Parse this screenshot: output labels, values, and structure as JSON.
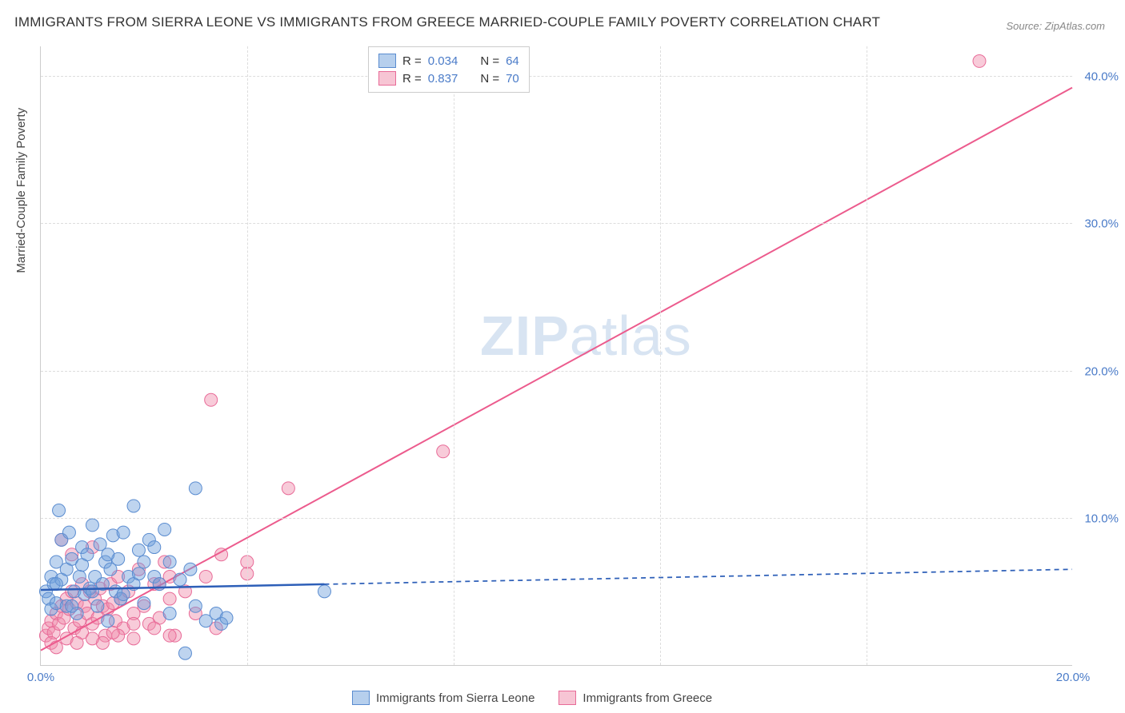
{
  "title": "IMMIGRANTS FROM SIERRA LEONE VS IMMIGRANTS FROM GREECE MARRIED-COUPLE FAMILY POVERTY CORRELATION CHART",
  "source": "Source: ZipAtlas.com",
  "y_axis_label": "Married-Couple Family Poverty",
  "watermark_bold": "ZIP",
  "watermark_rest": "atlas",
  "chart": {
    "type": "scatter",
    "background_color": "#ffffff",
    "grid_color": "#dddddd",
    "axis_color": "#cccccc",
    "tick_color": "#4a7bc8",
    "xlim": [
      0,
      20
    ],
    "ylim": [
      0,
      42
    ],
    "yticks": [
      {
        "value": 10,
        "label": "10.0%"
      },
      {
        "value": 20,
        "label": "20.0%"
      },
      {
        "value": 30,
        "label": "30.0%"
      },
      {
        "value": 40,
        "label": "40.0%"
      }
    ],
    "xticks": [
      {
        "value": 0,
        "label": "0.0%"
      },
      {
        "value": 20,
        "label": "20.0%"
      }
    ],
    "xgrid_values": [
      4,
      8,
      12,
      16
    ]
  },
  "legend_top": {
    "rows": [
      {
        "swatch": "blue",
        "R_label": "R =",
        "R_value": "0.034",
        "N_label": "N =",
        "N_value": "64"
      },
      {
        "swatch": "pink",
        "R_label": "R =",
        "R_value": "0.837",
        "N_label": "N =",
        "N_value": "70"
      }
    ]
  },
  "legend_bottom": {
    "items": [
      {
        "swatch": "blue",
        "label": "Immigrants from Sierra Leone"
      },
      {
        "swatch": "pink",
        "label": "Immigrants from Greece"
      }
    ]
  },
  "series": {
    "blue": {
      "marker_fill": "rgba(110,160,220,0.45)",
      "marker_stroke": "#5a8cd0",
      "marker_radius": 8,
      "trend_color": "#2d5fb8",
      "trend_width": 2.5,
      "trend_solid_xmax": 5.5,
      "trend": {
        "x0": 0,
        "y0": 5.1,
        "x1": 20,
        "y1": 6.5
      },
      "points": [
        [
          0.1,
          5.0
        ],
        [
          0.15,
          4.5
        ],
        [
          0.2,
          6.0
        ],
        [
          0.2,
          3.8
        ],
        [
          0.25,
          5.5
        ],
        [
          0.3,
          7.0
        ],
        [
          0.3,
          4.2
        ],
        [
          0.35,
          10.5
        ],
        [
          0.4,
          5.8
        ],
        [
          0.4,
          8.5
        ],
        [
          0.5,
          6.5
        ],
        [
          0.5,
          4.0
        ],
        [
          0.55,
          9.0
        ],
        [
          0.6,
          7.2
        ],
        [
          0.65,
          5.0
        ],
        [
          0.7,
          3.5
        ],
        [
          0.75,
          6.0
        ],
        [
          0.8,
          8.0
        ],
        [
          0.85,
          4.8
        ],
        [
          0.9,
          7.5
        ],
        [
          0.95,
          5.2
        ],
        [
          1.0,
          9.5
        ],
        [
          1.05,
          6.0
        ],
        [
          1.1,
          4.0
        ],
        [
          1.15,
          8.2
        ],
        [
          1.2,
          5.5
        ],
        [
          1.25,
          7.0
        ],
        [
          1.3,
          3.0
        ],
        [
          1.35,
          6.5
        ],
        [
          1.4,
          8.8
        ],
        [
          1.45,
          5.0
        ],
        [
          1.5,
          7.2
        ],
        [
          1.55,
          4.5
        ],
        [
          1.6,
          9.0
        ],
        [
          1.7,
          6.0
        ],
        [
          1.8,
          5.5
        ],
        [
          1.9,
          7.8
        ],
        [
          2.0,
          4.2
        ],
        [
          2.1,
          8.5
        ],
        [
          2.2,
          6.0
        ],
        [
          2.3,
          5.5
        ],
        [
          2.4,
          9.2
        ],
        [
          2.5,
          3.5
        ],
        [
          2.5,
          7.0
        ],
        [
          2.7,
          5.8
        ],
        [
          2.8,
          0.8
        ],
        [
          2.9,
          6.5
        ],
        [
          3.0,
          4.0
        ],
        [
          3.2,
          3.0
        ],
        [
          3.4,
          3.5
        ],
        [
          3.5,
          2.8
        ],
        [
          3.6,
          3.2
        ],
        [
          1.8,
          10.8
        ],
        [
          3.0,
          12.0
        ],
        [
          0.3,
          5.5
        ],
        [
          0.6,
          4.0
        ],
        [
          0.8,
          6.8
        ],
        [
          1.0,
          5.0
        ],
        [
          1.3,
          7.5
        ],
        [
          1.6,
          4.8
        ],
        [
          1.9,
          6.2
        ],
        [
          2.2,
          8.0
        ],
        [
          5.5,
          5.0
        ],
        [
          2.0,
          7.0
        ]
      ]
    },
    "pink": {
      "marker_fill": "rgba(240,140,170,0.45)",
      "marker_stroke": "#e86b98",
      "marker_radius": 8,
      "trend_color": "#ec5b8d",
      "trend_width": 2,
      "trend_solid_xmax": 20,
      "trend": {
        "x0": 0,
        "y0": 1.0,
        "x1": 20,
        "y1": 39.2
      },
      "points": [
        [
          0.1,
          2.0
        ],
        [
          0.15,
          2.5
        ],
        [
          0.2,
          3.0
        ],
        [
          0.25,
          2.2
        ],
        [
          0.3,
          3.5
        ],
        [
          0.35,
          2.8
        ],
        [
          0.4,
          4.0
        ],
        [
          0.45,
          3.2
        ],
        [
          0.5,
          4.5
        ],
        [
          0.55,
          3.8
        ],
        [
          0.6,
          5.0
        ],
        [
          0.65,
          2.5
        ],
        [
          0.7,
          4.2
        ],
        [
          0.75,
          3.0
        ],
        [
          0.8,
          5.5
        ],
        [
          0.85,
          4.0
        ],
        [
          0.9,
          3.5
        ],
        [
          0.95,
          5.0
        ],
        [
          1.0,
          2.8
        ],
        [
          1.05,
          4.5
        ],
        [
          1.1,
          3.2
        ],
        [
          1.15,
          5.2
        ],
        [
          1.2,
          4.0
        ],
        [
          1.25,
          2.0
        ],
        [
          1.3,
          3.8
        ],
        [
          1.35,
          5.5
        ],
        [
          1.4,
          4.2
        ],
        [
          1.45,
          3.0
        ],
        [
          1.5,
          6.0
        ],
        [
          1.55,
          4.5
        ],
        [
          1.6,
          2.5
        ],
        [
          1.7,
          5.0
        ],
        [
          1.8,
          3.5
        ],
        [
          1.9,
          6.5
        ],
        [
          2.0,
          4.0
        ],
        [
          2.1,
          2.8
        ],
        [
          2.2,
          5.5
        ],
        [
          2.3,
          3.2
        ],
        [
          2.4,
          7.0
        ],
        [
          2.5,
          4.5
        ],
        [
          2.6,
          2.0
        ],
        [
          2.8,
          5.0
        ],
        [
          3.0,
          3.5
        ],
        [
          3.2,
          6.0
        ],
        [
          3.4,
          2.5
        ],
        [
          0.2,
          1.5
        ],
        [
          0.5,
          1.8
        ],
        [
          0.8,
          2.2
        ],
        [
          1.2,
          1.5
        ],
        [
          1.5,
          2.0
        ],
        [
          1.8,
          1.8
        ],
        [
          2.2,
          2.5
        ],
        [
          2.5,
          2.0
        ],
        [
          0.3,
          1.2
        ],
        [
          0.7,
          1.5
        ],
        [
          1.0,
          1.8
        ],
        [
          1.4,
          2.2
        ],
        [
          1.8,
          2.8
        ],
        [
          2.3,
          5.5
        ],
        [
          2.5,
          6.0
        ],
        [
          4.0,
          7.0
        ],
        [
          3.5,
          7.5
        ],
        [
          4.0,
          6.2
        ],
        [
          4.8,
          12.0
        ],
        [
          3.3,
          18.0
        ],
        [
          7.8,
          14.5
        ],
        [
          0.4,
          8.5
        ],
        [
          1.0,
          8.0
        ],
        [
          18.2,
          41.0
        ],
        [
          0.6,
          7.5
        ]
      ]
    }
  }
}
